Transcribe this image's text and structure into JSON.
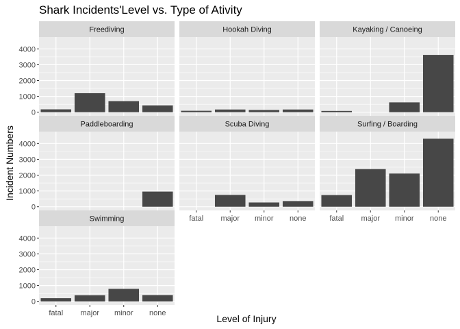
{
  "chart_data": {
    "type": "bar",
    "title": "Shark Incidents'Level vs. Type of Ativity",
    "xlabel": "Level of Injury",
    "ylabel": "Incident Numbers",
    "categories": [
      "fatal",
      "major",
      "minor",
      "none"
    ],
    "yticks": [
      0,
      1000,
      2000,
      3000,
      4000
    ],
    "ylim": [
      -230,
      4750
    ],
    "grid": true,
    "facets": [
      {
        "name": "Freediving",
        "values": [
          180,
          1200,
          700,
          430
        ]
      },
      {
        "name": "Hookah Diving",
        "values": [
          90,
          170,
          140,
          170
        ]
      },
      {
        "name": "Kayaking / Canoeing",
        "values": [
          80,
          0,
          620,
          3620
        ]
      },
      {
        "name": "Paddleboarding",
        "values": [
          0,
          0,
          0,
          960
        ]
      },
      {
        "name": "Scuba Diving",
        "values": [
          0,
          750,
          270,
          360
        ]
      },
      {
        "name": "Surfing / Boarding",
        "values": [
          740,
          2380,
          2100,
          4300
        ]
      },
      {
        "name": "Swimming",
        "values": [
          200,
          390,
          790,
          400
        ]
      }
    ]
  },
  "colors": {
    "panel_background": "#ebebeb",
    "strip_background": "#d9d9d9",
    "bar": "#474747",
    "grid_major": "#ffffff",
    "tick": "#333333"
  }
}
